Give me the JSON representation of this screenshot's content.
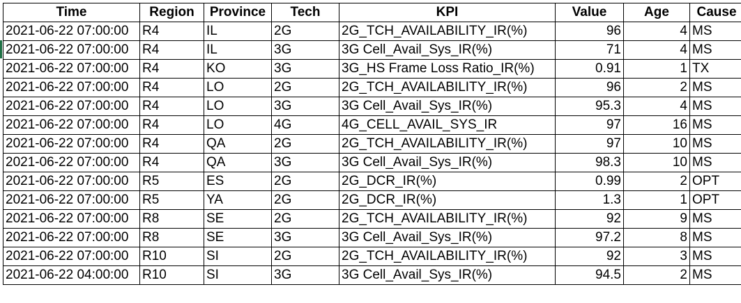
{
  "table": {
    "headers": [
      "Time",
      "Region",
      "Province",
      "Tech",
      "KPI",
      "Value",
      "Age",
      "Cause"
    ],
    "rows": [
      [
        "2021-06-22 07:00:00",
        "R4",
        "IL",
        "2G",
        "2G_TCH_AVAILABILITY_IR(%)",
        "96",
        "4",
        "MS"
      ],
      [
        "2021-06-22 07:00:00",
        "R4",
        "IL",
        "3G",
        "3G Cell_Avail_Sys_IR(%)",
        "71",
        "4",
        "MS"
      ],
      [
        "2021-06-22 07:00:00",
        "R4",
        "KO",
        "3G",
        "3G_HS Frame Loss Ratio_IR(%)",
        "0.91",
        "1",
        "TX"
      ],
      [
        "2021-06-22 07:00:00",
        "R4",
        "LO",
        "2G",
        "2G_TCH_AVAILABILITY_IR(%)",
        "96",
        "2",
        "MS"
      ],
      [
        "2021-06-22 07:00:00",
        "R4",
        "LO",
        "3G",
        "3G Cell_Avail_Sys_IR(%)",
        "95.3",
        "4",
        "MS"
      ],
      [
        "2021-06-22 07:00:00",
        "R4",
        "LO",
        "4G",
        "4G_CELL_AVAIL_SYS_IR",
        "97",
        "16",
        "MS"
      ],
      [
        "2021-06-22 07:00:00",
        "R4",
        "QA",
        "2G",
        "2G_TCH_AVAILABILITY_IR(%)",
        "97",
        "10",
        "MS"
      ],
      [
        "2021-06-22 07:00:00",
        "R4",
        "QA",
        "3G",
        "3G Cell_Avail_Sys_IR(%)",
        "98.3",
        "10",
        "MS"
      ],
      [
        "2021-06-22 07:00:00",
        "R5",
        "ES",
        "2G",
        "2G_DCR_IR(%)",
        "0.99",
        "2",
        "OPT"
      ],
      [
        "2021-06-22 07:00:00",
        "R5",
        "YA",
        "2G",
        "2G_DCR_IR(%)",
        "1.3",
        "1",
        "OPT"
      ],
      [
        "2021-06-22 07:00:00",
        "R8",
        "SE",
        "2G",
        "2G_TCH_AVAILABILITY_IR(%)",
        "92",
        "9",
        "MS"
      ],
      [
        "2021-06-22 07:00:00",
        "R8",
        "SE",
        "3G",
        "3G Cell_Avail_Sys_IR(%)",
        "97.2",
        "8",
        "MS"
      ],
      [
        "2021-06-22 07:00:00",
        "R10",
        "SI",
        "2G",
        "2G_TCH_AVAILABILITY_IR(%)",
        "92",
        "3",
        "MS"
      ],
      [
        "2021-06-22 04:00:00",
        "R10",
        "SI",
        "3G",
        "3G Cell_Avail_Sys_IR(%)",
        "94.5",
        "2",
        "MS"
      ]
    ]
  }
}
